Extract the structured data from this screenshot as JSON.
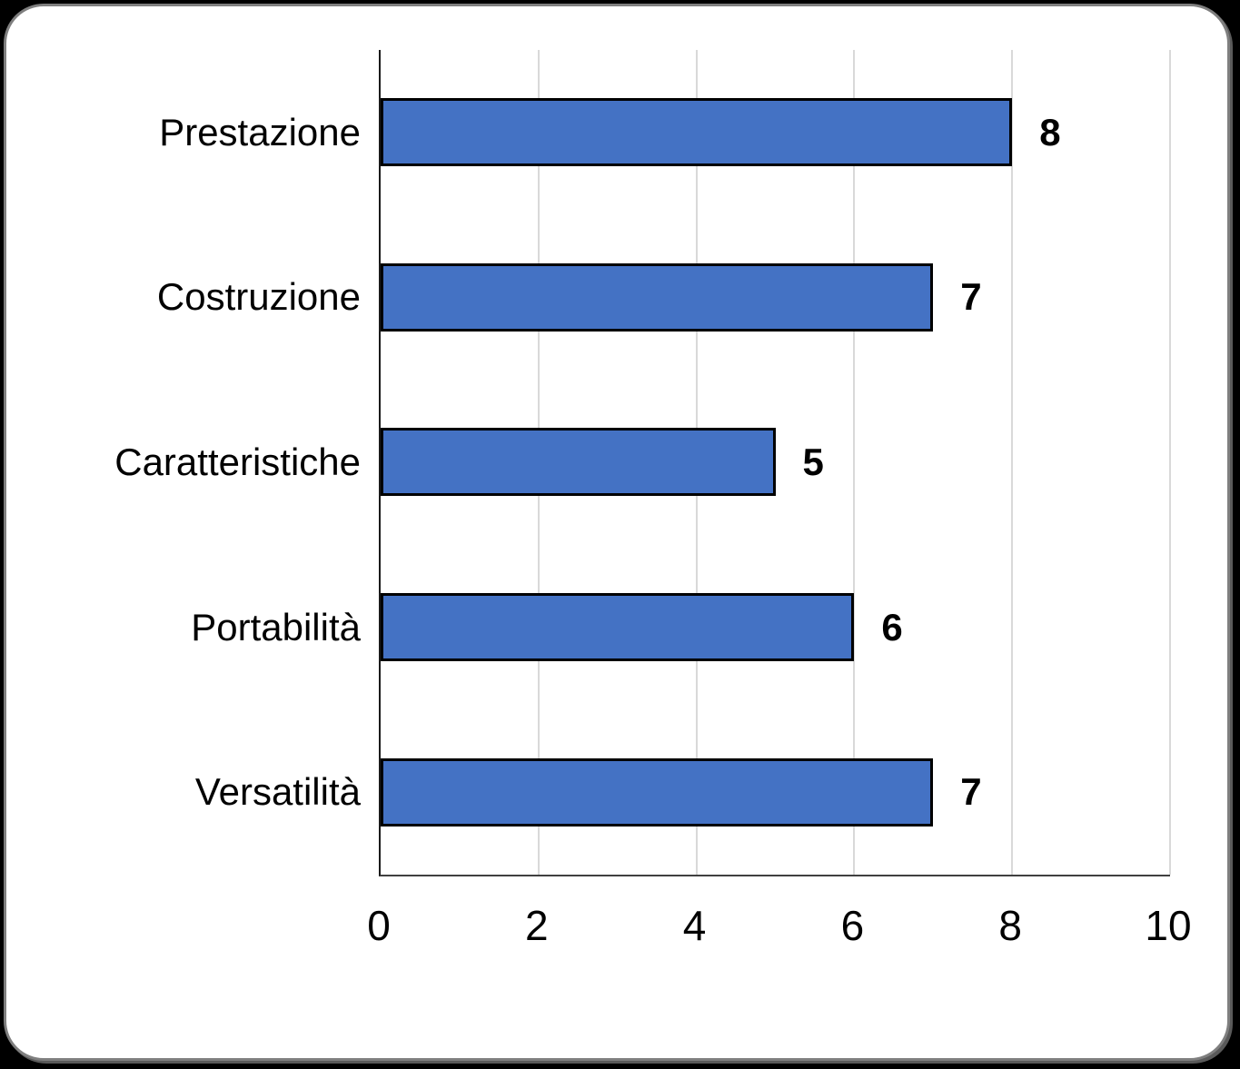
{
  "chart_data": {
    "type": "bar",
    "orientation": "horizontal",
    "title": "",
    "xlabel": "",
    "ylabel": "",
    "categories": [
      "Prestazione",
      "Costruzione",
      "Caratteristiche",
      "Portabilità",
      "Versatilità"
    ],
    "values": [
      8,
      7,
      5,
      6,
      7
    ],
    "value_labels": [
      "8",
      "7",
      "5",
      "6",
      "7"
    ],
    "xlim": [
      0,
      10
    ],
    "xticks": [
      0,
      2,
      4,
      6,
      8,
      10
    ],
    "grid": "vertical-on",
    "legend": "none",
    "colors": {
      "bar_fill": "#4472C4",
      "bar_border": "#000000",
      "gridline": "#D9D9D9",
      "axis_line": "#1a1a1a",
      "text": "#000000",
      "card_background": "#FFFFFF",
      "card_border": "#7F7F7F",
      "page_background": "#000000"
    }
  }
}
